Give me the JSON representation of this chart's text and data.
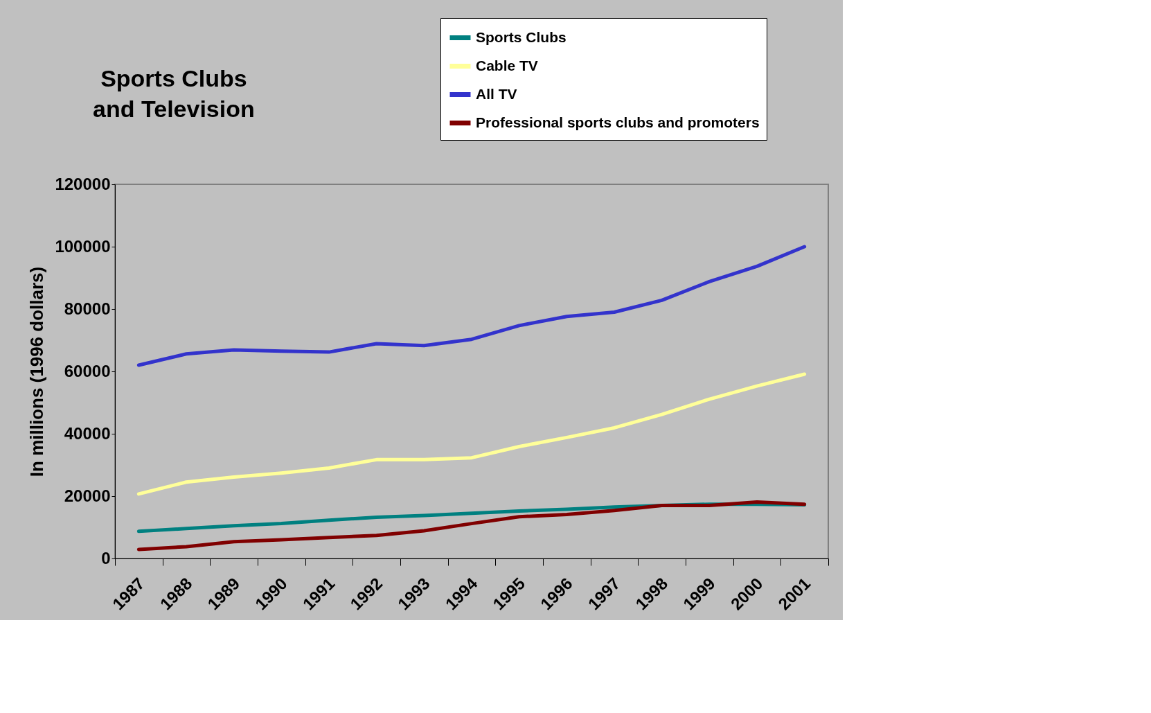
{
  "chart_data": {
    "type": "line",
    "title": "Sports Clubs\nand Television",
    "ylabel": "In millions (1996 dollars)",
    "categories": [
      "1987",
      "1988",
      "1989",
      "1990",
      "1991",
      "1992",
      "1993",
      "1994",
      "1995",
      "1996",
      "1997",
      "1998",
      "1999",
      "2000",
      "2001"
    ],
    "ylim": [
      0,
      120000
    ],
    "yticks": [
      0,
      20000,
      40000,
      60000,
      80000,
      100000,
      120000
    ],
    "grid": false,
    "legend": "top right",
    "marker": "none",
    "line_style": "solid",
    "series": [
      {
        "name": "Sports Clubs",
        "color": "#008080",
        "values": [
          8700,
          9600,
          10500,
          11200,
          12300,
          13200,
          13800,
          14500,
          15200,
          15800,
          16500,
          17000,
          17400,
          17400,
          17200
        ]
      },
      {
        "name": "Cable TV",
        "color": "#ffff99",
        "values": [
          20700,
          24500,
          26100,
          27400,
          29000,
          31700,
          31700,
          32300,
          35900,
          38800,
          41900,
          46200,
          51100,
          55300,
          59100
        ]
      },
      {
        "name": "All TV",
        "color": "#3333cc",
        "values": [
          62000,
          65600,
          66900,
          66500,
          66200,
          68900,
          68300,
          70300,
          74700,
          77600,
          79000,
          82800,
          88800,
          93700,
          100000
        ]
      },
      {
        "name": "Professional sports clubs and promoters",
        "color": "#800000",
        "values": [
          2900,
          3800,
          5400,
          6000,
          6700,
          7400,
          8900,
          11200,
          13400,
          14100,
          15400,
          17000,
          17000,
          18100,
          17400
        ]
      }
    ]
  }
}
